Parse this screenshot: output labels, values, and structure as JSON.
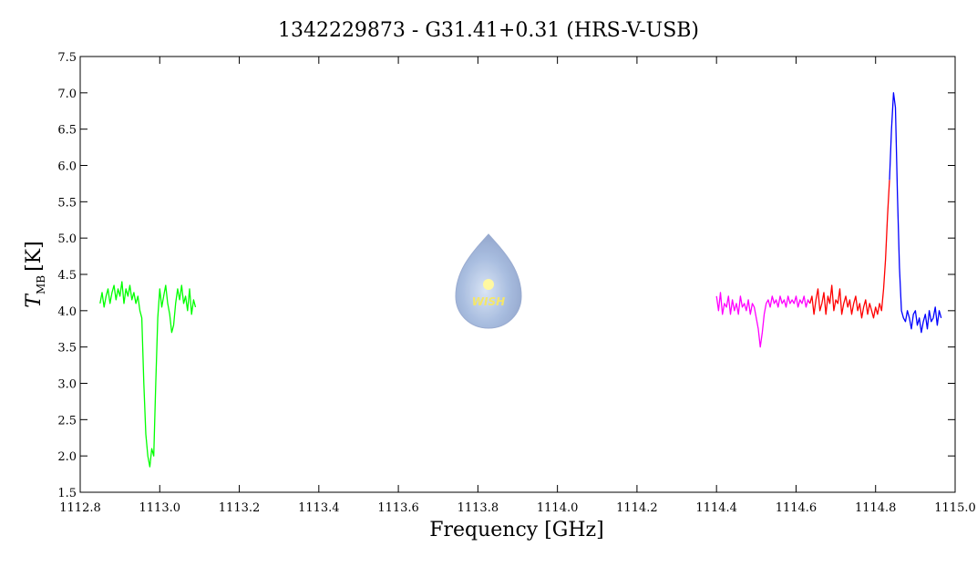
{
  "chart_data": {
    "type": "line",
    "title": "1342229873 - G31.41+0.31 (HRS-V-USB)",
    "x_label": "Frequency [GHz]",
    "y_label": {
      "main": "T",
      "subscript": "MB",
      "unit": "[K]"
    },
    "watermark": "WISH",
    "xlim": [
      1112.8,
      1115.0
    ],
    "xticks": [
      {
        "value": 1112.8,
        "label": "1112.8"
      },
      {
        "value": 1113.0,
        "label": "1113.0"
      },
      {
        "value": 1113.2,
        "label": "1113.2"
      },
      {
        "value": 1113.4,
        "label": "1113.4"
      },
      {
        "value": 1113.6,
        "label": "1113.6"
      },
      {
        "value": 1113.8,
        "label": "1113.8"
      },
      {
        "value": 1114.0,
        "label": "1114.0"
      },
      {
        "value": 1114.2,
        "label": "1114.2"
      },
      {
        "value": 1114.4,
        "label": "1114.4"
      },
      {
        "value": 1114.6,
        "label": "1114.6"
      },
      {
        "value": 1114.8,
        "label": "1114.8"
      },
      {
        "value": 1115.0,
        "label": "1115.0"
      }
    ],
    "ylim": [
      1.5,
      7.5
    ],
    "yticks": [
      1.5,
      {
        "value": 2.0,
        "label": "2.0"
      },
      2.5,
      {
        "value": 3.0,
        "label": "3.0"
      },
      3.5,
      {
        "value": 4.0,
        "label": "4.0"
      },
      4.5,
      {
        "value": 5.0,
        "label": "5.0"
      },
      5.5,
      {
        "value": 6.0,
        "label": "6.0"
      },
      6.5,
      {
        "value": 7.0,
        "label": "7.0"
      },
      7.5
    ],
    "series": [
      {
        "color": "#00ff00",
        "x": [
          1112.85,
          1112.855,
          1112.86,
          1112.865,
          1112.87,
          1112.875,
          1112.88,
          1112.885,
          1112.89,
          1112.895,
          1112.9,
          1112.905,
          1112.91,
          1112.915,
          1112.92,
          1112.925,
          1112.93,
          1112.935,
          1112.94,
          1112.945,
          1112.95,
          1112.955,
          1112.96,
          1112.965,
          1112.97,
          1112.975,
          1112.98,
          1112.985,
          1112.99,
          1112.995,
          1113.0,
          1113.005,
          1113.01,
          1113.015,
          1113.02,
          1113.025,
          1113.03,
          1113.035,
          1113.04,
          1113.045,
          1113.05,
          1113.055,
          1113.06,
          1113.065,
          1113.07,
          1113.075,
          1113.08,
          1113.085,
          1113.09
        ],
        "values": [
          4.1,
          4.25,
          4.05,
          4.2,
          4.3,
          4.1,
          4.25,
          4.35,
          4.15,
          4.3,
          4.2,
          4.4,
          4.1,
          4.3,
          4.2,
          4.35,
          4.15,
          4.25,
          4.1,
          4.2,
          4.0,
          3.9,
          3.0,
          2.3,
          2.0,
          1.85,
          2.1,
          2.0,
          3.0,
          3.9,
          4.3,
          4.05,
          4.2,
          4.35,
          4.1,
          3.95,
          3.7,
          3.8,
          4.1,
          4.3,
          4.15,
          4.35,
          4.1,
          4.2,
          4.0,
          4.3,
          3.95,
          4.15,
          4.05
        ]
      },
      {
        "color": "#ff00ff",
        "x": [
          1114.4,
          1114.405,
          1114.41,
          1114.415,
          1114.42,
          1114.425,
          1114.43,
          1114.435,
          1114.44,
          1114.445,
          1114.45,
          1114.455,
          1114.46,
          1114.465,
          1114.47,
          1114.475,
          1114.48,
          1114.485,
          1114.49,
          1114.495,
          1114.5,
          1114.505,
          1114.51,
          1114.515,
          1114.52,
          1114.525,
          1114.53,
          1114.535,
          1114.54,
          1114.545,
          1114.55,
          1114.555,
          1114.56,
          1114.565,
          1114.57,
          1114.575,
          1114.58,
          1114.585,
          1114.59,
          1114.595,
          1114.6,
          1114.605,
          1114.61,
          1114.615,
          1114.62,
          1114.625,
          1114.63,
          1114.635
        ],
        "values": [
          4.2,
          4.0,
          4.25,
          3.95,
          4.1,
          4.05,
          4.2,
          3.95,
          4.15,
          4.0,
          4.1,
          3.95,
          4.2,
          4.05,
          4.1,
          4.0,
          4.15,
          3.95,
          4.1,
          4.05,
          3.9,
          3.75,
          3.5,
          3.7,
          3.95,
          4.1,
          4.15,
          4.05,
          4.2,
          4.1,
          4.15,
          4.05,
          4.2,
          4.1,
          4.15,
          4.05,
          4.2,
          4.1,
          4.15,
          4.1,
          4.2,
          4.05,
          4.15,
          4.1,
          4.2,
          4.05,
          4.15,
          4.1
        ]
      },
      {
        "color": "#ff0000",
        "x": [
          1114.635,
          1114.64,
          1114.645,
          1114.65,
          1114.655,
          1114.66,
          1114.665,
          1114.67,
          1114.675,
          1114.68,
          1114.685,
          1114.69,
          1114.695,
          1114.7,
          1114.705,
          1114.71,
          1114.715,
          1114.72,
          1114.725,
          1114.73,
          1114.735,
          1114.74,
          1114.745,
          1114.75,
          1114.755,
          1114.76,
          1114.765,
          1114.77,
          1114.775,
          1114.78,
          1114.785,
          1114.79,
          1114.795,
          1114.8,
          1114.805,
          1114.81,
          1114.815,
          1114.82,
          1114.825,
          1114.83,
          1114.835
        ],
        "values": [
          4.1,
          4.2,
          3.95,
          4.15,
          4.3,
          4.0,
          4.1,
          4.25,
          3.95,
          4.2,
          4.1,
          4.35,
          4.0,
          4.15,
          4.1,
          4.3,
          3.95,
          4.1,
          4.2,
          4.05,
          4.15,
          3.95,
          4.1,
          4.2,
          4.0,
          4.1,
          3.9,
          4.05,
          4.15,
          3.95,
          4.1,
          4.0,
          3.9,
          4.05,
          3.95,
          4.1,
          4.0,
          4.3,
          4.7,
          5.3,
          5.8
        ]
      },
      {
        "color": "#0000ff",
        "x": [
          1114.835,
          1114.84,
          1114.845,
          1114.85,
          1114.855,
          1114.86,
          1114.865,
          1114.87,
          1114.875,
          1114.88,
          1114.885,
          1114.89,
          1114.895,
          1114.9,
          1114.905,
          1114.91,
          1114.915,
          1114.92,
          1114.925,
          1114.93,
          1114.935,
          1114.94,
          1114.945,
          1114.95,
          1114.955,
          1114.96,
          1114.965
        ],
        "values": [
          5.8,
          6.5,
          7.0,
          6.8,
          5.6,
          4.6,
          4.0,
          3.9,
          3.85,
          4.0,
          3.9,
          3.75,
          3.95,
          4.0,
          3.8,
          3.9,
          3.7,
          3.85,
          3.95,
          3.75,
          4.0,
          3.85,
          3.9,
          4.05,
          3.8,
          4.0,
          3.9
        ]
      }
    ]
  }
}
